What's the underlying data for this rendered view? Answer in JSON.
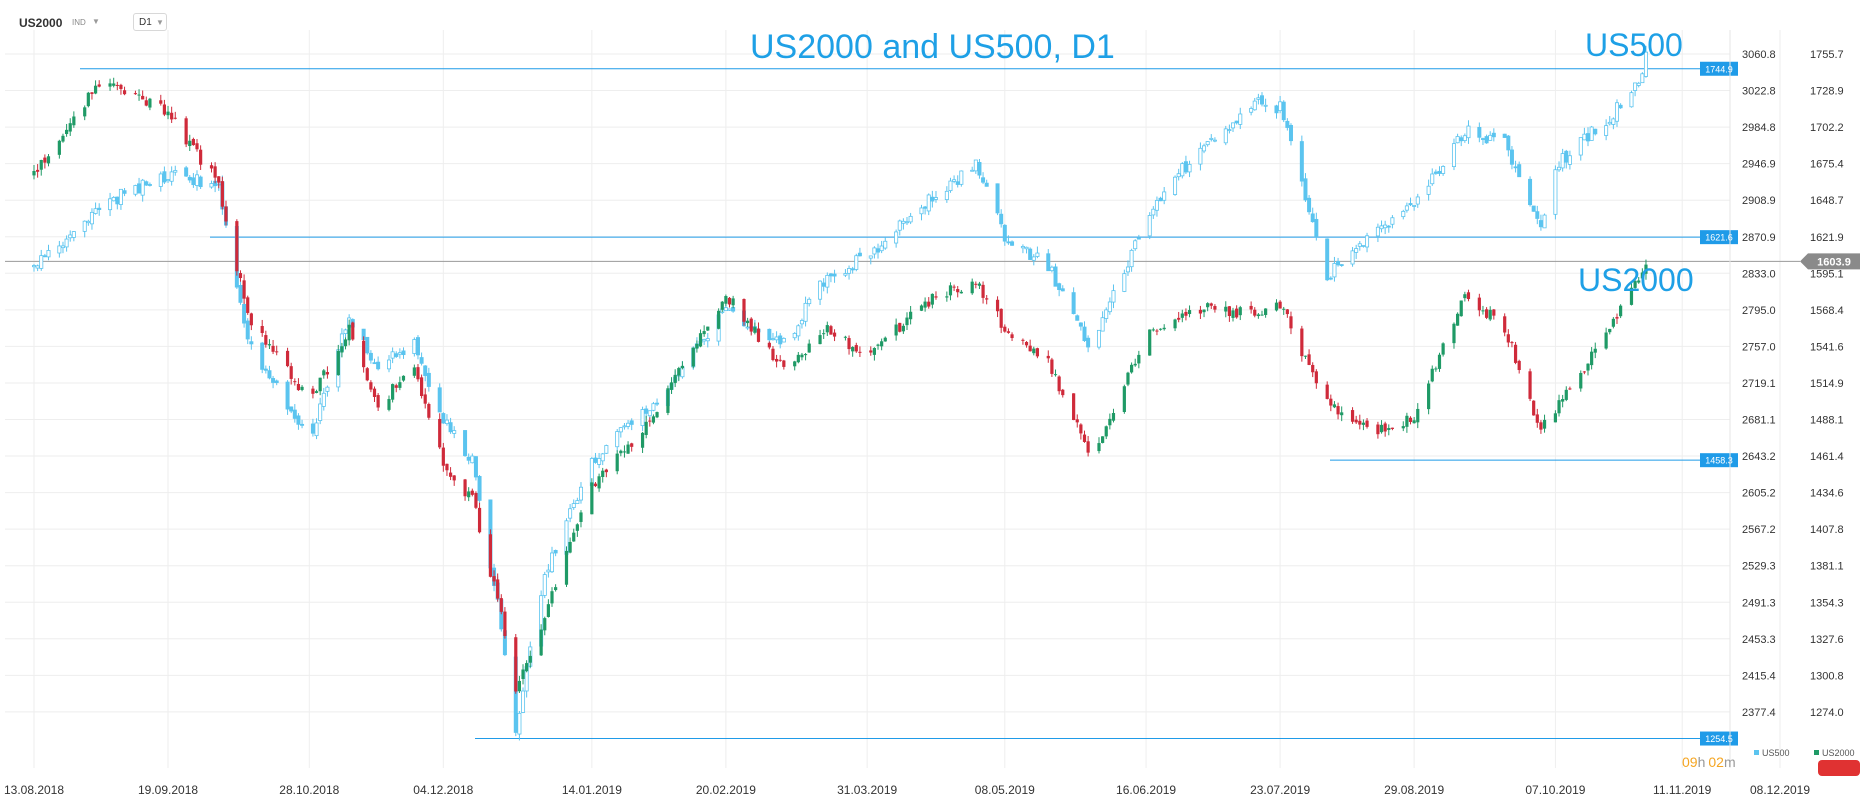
{
  "header": {
    "symbol": "US2000",
    "ind_label": "IND",
    "timeframe": "D1"
  },
  "title": "US2000 and US500, D1",
  "timer": {
    "hours": "09",
    "h_unit": "h",
    "minutes": "02",
    "m_unit": "m"
  },
  "legend": {
    "items": [
      "US500",
      "US2000"
    ]
  },
  "colors": {
    "us500": "#5bc4ef",
    "up": "#1f9a66",
    "down": "#cf2a3a",
    "level_line": "#1f9be8",
    "grid": "#eeeeee",
    "current_badge": "#8a8a8a",
    "timer_accent": "#f5a623"
  },
  "chart_data": {
    "type": "candlestick",
    "title": "US2000 and US500, D1",
    "x_ticks": [
      "13.08.2018",
      "19.09.2018",
      "28.10.2018",
      "04.12.2018",
      "14.01.2019",
      "20.02.2019",
      "31.03.2019",
      "08.05.2019",
      "16.06.2019",
      "23.07.2019",
      "29.08.2019",
      "07.10.2019",
      "11.11.2019",
      "08.12.2019"
    ],
    "y_axis_left": {
      "series": "US500",
      "ticks": [
        3060.8,
        3022.8,
        2984.8,
        2946.9,
        2908.9,
        2870.9,
        2833.0,
        2795.0,
        2757.0,
        2719.1,
        2681.1,
        2643.2,
        2605.2,
        2567.2,
        2529.3,
        2491.3,
        2453.3,
        2415.4,
        2377.4
      ]
    },
    "y_axis_right": {
      "series": "US2000",
      "ticks": [
        1755.7,
        1728.9,
        1702.2,
        1675.4,
        1648.7,
        1621.9,
        1595.1,
        1568.4,
        1541.6,
        1514.9,
        1488.1,
        1461.4,
        1434.6,
        1407.8,
        1381.1,
        1354.3,
        1327.6,
        1300.8,
        1274.0
      ]
    },
    "series_labels": [
      "US500",
      "US2000"
    ],
    "levels": [
      {
        "value": 1744.9,
        "label": "1744.9"
      },
      {
        "value": 1621.6,
        "label": "1621.6"
      },
      {
        "value": 1458.3,
        "label": "1458.3"
      },
      {
        "value": 1254.5,
        "label": "1254.5"
      }
    ],
    "current_price": {
      "value": 1603.9,
      "label": "1603.9"
    },
    "series": [
      {
        "name": "US2000",
        "style": "colored-candles",
        "anchors": [
          [
            "13.08.2018",
            1668
          ],
          [
            "01.09.2018",
            1740
          ],
          [
            "19.09.2018",
            1712
          ],
          [
            "03.10.2018",
            1660
          ],
          [
            "11.10.2018",
            1565
          ],
          [
            "28.10.2018",
            1500
          ],
          [
            "08.11.2018",
            1555
          ],
          [
            "16.11.2018",
            1500
          ],
          [
            "26.11.2018",
            1525
          ],
          [
            "04.12.2018",
            1455
          ],
          [
            "12.12.2018",
            1430
          ],
          [
            "20.12.2018",
            1345
          ],
          [
            "24.12.2018",
            1290
          ],
          [
            "01.01.2019",
            1345
          ],
          [
            "14.01.2019",
            1440
          ],
          [
            "28.01.2019",
            1480
          ],
          [
            "20.02.2019",
            1580
          ],
          [
            "08.03.2019",
            1525
          ],
          [
            "20.03.2019",
            1555
          ],
          [
            "31.03.2019",
            1535
          ],
          [
            "17.04.2019",
            1575
          ],
          [
            "30.04.2019",
            1590
          ],
          [
            "08.05.2019",
            1555
          ],
          [
            "20.05.2019",
            1530
          ],
          [
            "01.06.2019",
            1460
          ],
          [
            "16.06.2019",
            1550
          ],
          [
            "30.06.2019",
            1570
          ],
          [
            "16.07.2019",
            1565
          ],
          [
            "23.07.2019",
            1572
          ],
          [
            "05.08.2019",
            1500
          ],
          [
            "20.08.2019",
            1480
          ],
          [
            "29.08.2019",
            1490
          ],
          [
            "12.09.2019",
            1580
          ],
          [
            "23.09.2019",
            1555
          ],
          [
            "03.10.2019",
            1480
          ],
          [
            "07.10.2019",
            1495
          ],
          [
            "22.10.2019",
            1555
          ],
          [
            "31.10.2019",
            1595
          ],
          [
            "01.11.2019",
            1604
          ]
        ]
      },
      {
        "name": "US500",
        "style": "hollow-candles",
        "anchors": [
          [
            "13.08.2018",
            2840
          ],
          [
            "01.09.2018",
            2905
          ],
          [
            "19.09.2018",
            2935
          ],
          [
            "03.10.2018",
            2925
          ],
          [
            "11.10.2018",
            2760
          ],
          [
            "28.10.2018",
            2660
          ],
          [
            "08.11.2018",
            2790
          ],
          [
            "16.11.2018",
            2735
          ],
          [
            "26.11.2018",
            2760
          ],
          [
            "04.12.2018",
            2680
          ],
          [
            "12.12.2018",
            2640
          ],
          [
            "20.12.2018",
            2470
          ],
          [
            "24.12.2018",
            2360
          ],
          [
            "01.01.2019",
            2520
          ],
          [
            "14.01.2019",
            2640
          ],
          [
            "28.01.2019",
            2685
          ],
          [
            "20.02.2019",
            2795
          ],
          [
            "08.03.2019",
            2760
          ],
          [
            "20.03.2019",
            2830
          ],
          [
            "31.03.2019",
            2850
          ],
          [
            "17.04.2019",
            2910
          ],
          [
            "30.04.2019",
            2945
          ],
          [
            "08.05.2019",
            2870
          ],
          [
            "20.05.2019",
            2840
          ],
          [
            "01.06.2019",
            2755
          ],
          [
            "16.06.2019",
            2890
          ],
          [
            "30.06.2019",
            2960
          ],
          [
            "16.07.2019",
            3010
          ],
          [
            "23.07.2019",
            3005
          ],
          [
            "05.08.2019",
            2830
          ],
          [
            "20.08.2019",
            2880
          ],
          [
            "29.08.2019",
            2905
          ],
          [
            "12.09.2019",
            2980
          ],
          [
            "23.09.2019",
            2970
          ],
          [
            "03.10.2019",
            2880
          ],
          [
            "07.10.2019",
            2945
          ],
          [
            "22.10.2019",
            2995
          ],
          [
            "31.10.2019",
            3035
          ],
          [
            "01.11.2019",
            3065
          ]
        ]
      }
    ]
  }
}
